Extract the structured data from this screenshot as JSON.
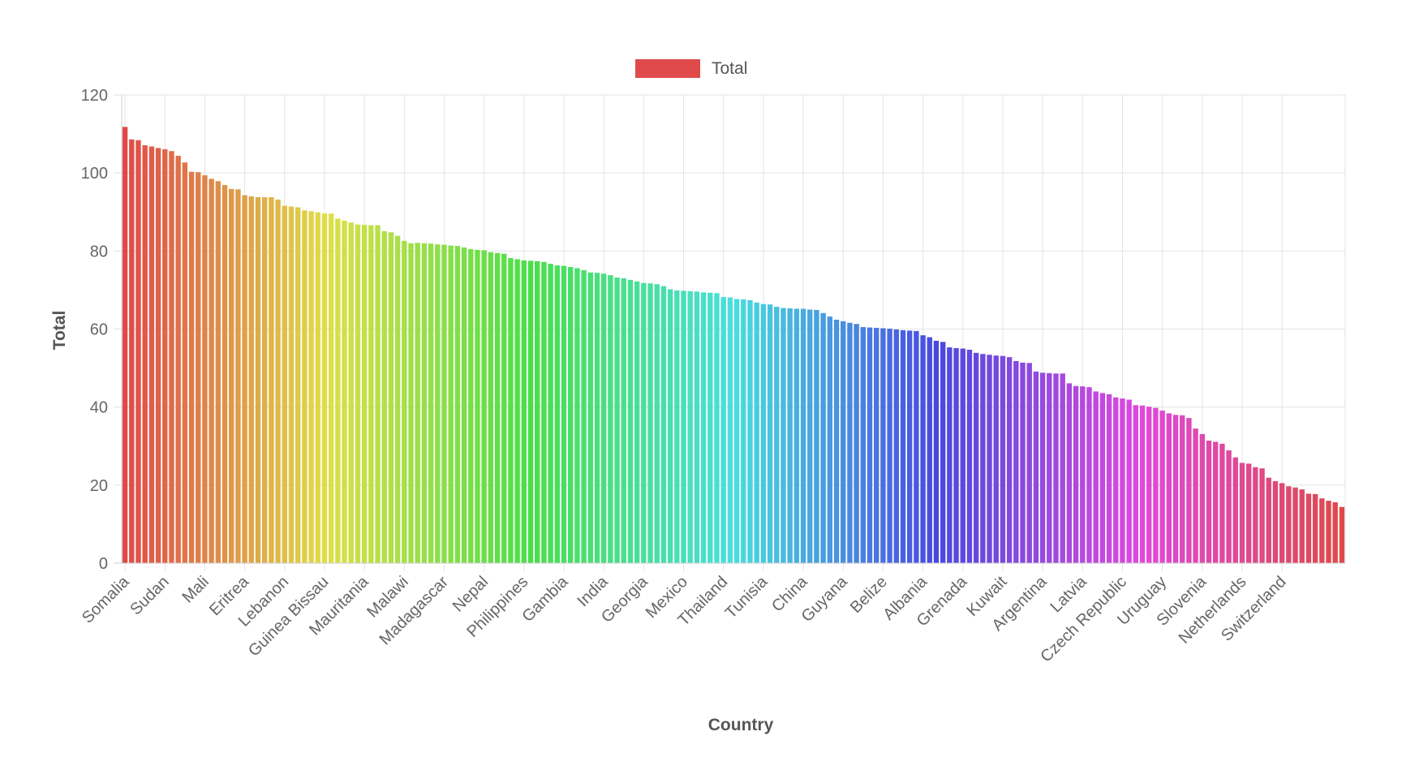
{
  "chart_data": {
    "type": "bar",
    "xlabel": "Country",
    "ylabel": "Total",
    "ylim": [
      0,
      120
    ],
    "yticks": [
      0,
      20,
      40,
      60,
      80,
      100,
      120
    ],
    "grid": true,
    "legend": {
      "position": "top-center",
      "label": "Total",
      "color": "#e04a4a"
    },
    "tick_labels": [
      "Somalia",
      "Sudan",
      "Mali",
      "Eritrea",
      "Lebanon",
      "Guinea Bissau",
      "Mauritania",
      "Malawi",
      "Madagascar",
      "Nepal",
      "Philippines",
      "Gambia",
      "India",
      "Georgia",
      "Mexico",
      "Thailand",
      "Tunisia",
      "China",
      "Guyana",
      "Belize",
      "Albania",
      "Grenada",
      "Kuwait",
      "Argentina",
      "Latvia",
      "Czech Republic",
      "Uruguay",
      "Slovenia",
      "Netherlands",
      "Switzerland"
    ],
    "label_every": 6,
    "color_scheme": "rainbow gradient from red (#e04a4a) through orange, yellow, green, cyan, blue, magenta back to red",
    "series": [
      {
        "name": "Total",
        "values": [
          111.8,
          108.6,
          108.4,
          107.1,
          106.8,
          106.4,
          106.1,
          105.6,
          104.4,
          102.7,
          100.3,
          100.2,
          99.4,
          98.5,
          97.9,
          96.9,
          95.9,
          95.8,
          94.3,
          94.0,
          93.8,
          93.8,
          93.8,
          93.2,
          91.6,
          91.4,
          91.2,
          90.4,
          90.2,
          89.9,
          89.6,
          89.6,
          88.3,
          87.8,
          87.3,
          86.8,
          86.7,
          86.6,
          86.6,
          85.1,
          84.8,
          83.9,
          82.6,
          82.0,
          82.1,
          82.0,
          81.9,
          81.7,
          81.6,
          81.4,
          81.3,
          80.9,
          80.5,
          80.3,
          80.2,
          79.7,
          79.5,
          79.3,
          78.2,
          77.9,
          77.6,
          77.5,
          77.4,
          77.2,
          76.7,
          76.3,
          76.2,
          75.9,
          75.6,
          75.1,
          74.5,
          74.4,
          74.2,
          73.8,
          73.2,
          73.0,
          72.6,
          72.2,
          71.8,
          71.7,
          71.5,
          71.0,
          70.2,
          69.9,
          69.8,
          69.7,
          69.6,
          69.4,
          69.3,
          69.2,
          68.2,
          68.1,
          67.7,
          67.6,
          67.4,
          66.8,
          66.4,
          66.3,
          65.7,
          65.4,
          65.3,
          65.2,
          65.2,
          65.0,
          64.9,
          64.1,
          63.2,
          62.4,
          62.0,
          61.6,
          61.3,
          60.5,
          60.4,
          60.3,
          60.2,
          60.1,
          59.9,
          59.7,
          59.6,
          59.5,
          58.4,
          57.9,
          57.0,
          56.7,
          55.3,
          55.1,
          55.0,
          54.7,
          53.9,
          53.6,
          53.4,
          53.2,
          53.1,
          52.8,
          51.8,
          51.4,
          51.3,
          49.1,
          48.8,
          48.7,
          48.6,
          48.6,
          46.1,
          45.4,
          45.3,
          45.1,
          44.0,
          43.6,
          43.3,
          42.5,
          42.2,
          41.9,
          40.5,
          40.4,
          40.1,
          39.8,
          39.1,
          38.4,
          38.0,
          37.9,
          37.2,
          34.5,
          33.1,
          31.4,
          31.1,
          30.6,
          28.9,
          27.1,
          25.7,
          25.5,
          24.6,
          24.3,
          21.9,
          21.0,
          20.5,
          19.7,
          19.4,
          18.9,
          17.8,
          17.7,
          16.6,
          16.0,
          15.6,
          14.4
        ]
      }
    ]
  }
}
